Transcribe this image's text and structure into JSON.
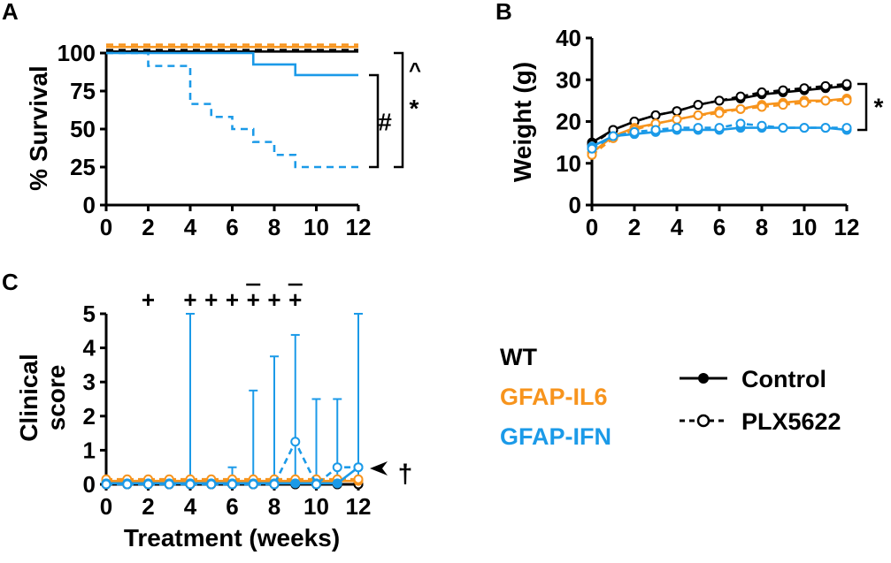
{
  "colors": {
    "wt": "#000000",
    "il6": "#f7941d",
    "ifn": "#1b9ae8"
  },
  "panels": {
    "a": "A",
    "b": "B",
    "c": "C"
  },
  "legend": {
    "genotypes": [
      {
        "label": "WT",
        "color": "#000000"
      },
      {
        "label": "GFAP-IL6",
        "color": "#f7941d"
      },
      {
        "label": "GFAP-IFN",
        "color": "#1b9ae8"
      }
    ],
    "treatments": [
      {
        "label": "Control",
        "style": "solid-filled"
      },
      {
        "label": "PLX5622",
        "style": "dashed-open"
      }
    ]
  },
  "chart_data": [
    {
      "id": "A",
      "type": "line",
      "ylabel": "% Survival",
      "xlabel": "",
      "xlim": [
        0,
        12
      ],
      "ylim": [
        0,
        100
      ],
      "xticks": [
        0,
        2,
        4,
        6,
        8,
        10,
        12
      ],
      "yticks": [
        0,
        25,
        50,
        75,
        100
      ],
      "series": [
        {
          "name": "WT Control",
          "group": "wt",
          "dash": false,
          "x": [
            0,
            12
          ],
          "y": [
            101,
            101
          ]
        },
        {
          "name": "WT PLX5622",
          "group": "wt",
          "dash": true,
          "x": [
            0,
            12
          ],
          "y": [
            102,
            102
          ]
        },
        {
          "name": "GFAP-IL6 Control",
          "group": "il6",
          "dash": false,
          "x": [
            0,
            12
          ],
          "y": [
            104,
            104
          ]
        },
        {
          "name": "GFAP-IL6 PLX5622",
          "group": "il6",
          "dash": true,
          "x": [
            0,
            12
          ],
          "y": [
            105.5,
            105.5
          ]
        },
        {
          "name": "GFAP-IFN Control",
          "group": "ifn",
          "dash": false,
          "step": true,
          "x": [
            0,
            7,
            9,
            12
          ],
          "y": [
            100,
            92.5,
            85.5,
            85.5
          ]
        },
        {
          "name": "GFAP-IFN PLX5622",
          "group": "ifn",
          "dash": true,
          "step": true,
          "x": [
            0,
            2,
            4,
            5,
            6,
            7,
            8,
            9,
            12
          ],
          "y": [
            100,
            91.5,
            66.5,
            58,
            50,
            41.5,
            33,
            25,
            25
          ]
        }
      ],
      "annotations": [
        "#",
        "^",
        "*"
      ]
    },
    {
      "id": "B",
      "type": "line",
      "ylabel": "Weight (g)",
      "xlabel": "",
      "xlim": [
        0,
        12
      ],
      "ylim": [
        0,
        40
      ],
      "xticks": [
        0,
        2,
        4,
        6,
        8,
        10,
        12
      ],
      "yticks": [
        0,
        10,
        20,
        30,
        40
      ],
      "x": [
        0,
        1,
        2,
        3,
        4,
        5,
        6,
        7,
        8,
        9,
        10,
        11,
        12
      ],
      "series": [
        {
          "name": "WT Control",
          "group": "wt",
          "dash": false,
          "values": [
            15,
            18,
            20,
            21.5,
            22.5,
            24,
            25,
            25.5,
            26.5,
            27,
            27.5,
            28,
            28.5
          ]
        },
        {
          "name": "WT PLX5622",
          "group": "wt",
          "dash": true,
          "values": [
            14.5,
            18,
            20,
            21.5,
            22.5,
            24,
            25,
            26,
            27,
            27.5,
            28,
            28.5,
            29
          ]
        },
        {
          "name": "GFAP-IL6 Control",
          "group": "il6",
          "dash": false,
          "values": [
            12.5,
            16.5,
            18.5,
            19.5,
            20.5,
            21.5,
            22.5,
            23,
            24,
            24.5,
            25,
            25,
            25.5
          ]
        },
        {
          "name": "GFAP-IL6 PLX5622",
          "group": "il6",
          "dash": true,
          "values": [
            12,
            16,
            18,
            19.5,
            20.5,
            21.5,
            22,
            23,
            23.5,
            24,
            24.5,
            25,
            25
          ]
        },
        {
          "name": "GFAP-IFN Control",
          "group": "ifn",
          "dash": false,
          "values": [
            14,
            16.5,
            17,
            17.5,
            18,
            18,
            18,
            18.5,
            18.5,
            18.5,
            18.5,
            18.5,
            18
          ]
        },
        {
          "name": "GFAP-IFN PLX5622",
          "group": "ifn",
          "dash": true,
          "values": [
            13.5,
            16.5,
            17.5,
            18,
            18.5,
            18.5,
            18.5,
            19.5,
            19,
            18.5,
            18.5,
            18.5,
            18.5
          ]
        }
      ],
      "annotations": [
        "*"
      ]
    },
    {
      "id": "C",
      "type": "line",
      "ylabel": [
        "Clinical",
        "score"
      ],
      "xlabel": "Treatment (weeks)",
      "xlim": [
        0,
        12
      ],
      "ylim": [
        0,
        5
      ],
      "xticks": [
        0,
        2,
        4,
        6,
        8,
        10,
        12
      ],
      "yticks": [
        0,
        1,
        2,
        3,
        4,
        5
      ],
      "x": [
        0,
        1,
        2,
        3,
        4,
        5,
        6,
        7,
        8,
        9,
        10,
        11,
        12
      ],
      "series": [
        {
          "name": "WT Control",
          "group": "wt",
          "dash": false,
          "values": [
            0,
            0,
            0,
            0,
            0,
            0,
            0,
            0,
            0,
            0,
            0,
            0,
            0
          ]
        },
        {
          "name": "WT PLX5622",
          "group": "wt",
          "dash": true,
          "values": [
            0,
            0,
            0,
            0,
            0,
            0,
            0,
            0,
            0,
            0,
            0,
            0,
            0
          ]
        },
        {
          "name": "GFAP-IL6 Control",
          "group": "il6",
          "dash": false,
          "values": [
            0.1,
            0.1,
            0.1,
            0.1,
            0.1,
            0.1,
            0.1,
            0.1,
            0.1,
            0.1,
            0.1,
            0.1,
            0.1
          ]
        },
        {
          "name": "GFAP-IL6 PLX5622",
          "group": "il6",
          "dash": true,
          "values": [
            0.15,
            0.15,
            0.15,
            0.15,
            0.15,
            0.15,
            0.15,
            0.15,
            0.15,
            0.15,
            0.15,
            0.15,
            0.15
          ]
        },
        {
          "name": "GFAP-IFN Control",
          "group": "ifn",
          "dash": false,
          "values": [
            0.03,
            0.03,
            0.03,
            0.03,
            0.03,
            0.03,
            0.03,
            0.03,
            0.03,
            0.03,
            0.03,
            0.03,
            0.5
          ]
        },
        {
          "name": "GFAP-IFN PLX5622",
          "group": "ifn",
          "dash": true,
          "values": [
            0,
            0,
            0,
            0,
            0,
            0,
            0,
            0,
            0,
            1.25,
            0,
            0.5,
            0.5
          ]
        }
      ],
      "error_bars": [
        {
          "x": 4,
          "high": 5.0
        },
        {
          "x": 6,
          "high": 0.5
        },
        {
          "x": 7,
          "high": 2.75
        },
        {
          "x": 8,
          "high": 3.75
        },
        {
          "x": 9,
          "high": 4.38
        },
        {
          "x": 10,
          "high": 2.5
        },
        {
          "x": 11,
          "high": 2.5
        },
        {
          "x": 12,
          "high": 5.0
        }
      ],
      "plus_marks": [
        {
          "x": 2,
          "text": "+",
          "bar": false
        },
        {
          "x": 4,
          "text": "+",
          "bar": false
        },
        {
          "x": 5,
          "text": "+",
          "bar": false
        },
        {
          "x": 6,
          "text": "+",
          "bar": false
        },
        {
          "x": 7,
          "text": "+",
          "bar": true
        },
        {
          "x": 8,
          "text": "+",
          "bar": false
        },
        {
          "x": 9,
          "text": "+",
          "bar": true
        }
      ],
      "annotations": [
        "†"
      ]
    }
  ]
}
